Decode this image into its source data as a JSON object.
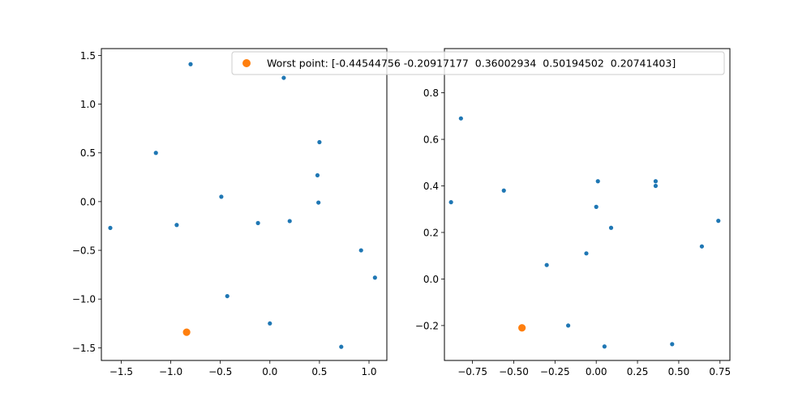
{
  "legend": {
    "label": "Worst point: [-0.44544756 -0.20917177  0.36002934  0.50194502  0.20741403]",
    "marker_color": "#ff7f0e"
  },
  "colors": {
    "points": "#1f77b4",
    "worst": "#ff7f0e",
    "axes": "#000000",
    "background": "#ffffff"
  },
  "chart_data": [
    {
      "type": "scatter",
      "xlim": [
        -1.7,
        1.18
      ],
      "ylim": [
        -1.63,
        1.57
      ],
      "xticks": [
        -1.5,
        -1.0,
        -0.5,
        0.0,
        0.5,
        1.0
      ],
      "xtick_labels": [
        "−1.5",
        "−1.0",
        "−0.5",
        "0.0",
        "0.5",
        "1.0"
      ],
      "yticks": [
        -1.5,
        -1.0,
        -0.5,
        0.0,
        0.5,
        1.0,
        1.5
      ],
      "ytick_labels": [
        "−1.5",
        "−1.0",
        "−0.5",
        "0.0",
        "0.5",
        "1.0",
        "1.5"
      ],
      "series": [
        {
          "points": [
            {
              "x": -0.8,
              "y": 1.41
            },
            {
              "x": 0.14,
              "y": 1.27
            },
            {
              "x": -1.15,
              "y": 0.5
            },
            {
              "x": 0.5,
              "y": 0.61
            },
            {
              "x": 0.48,
              "y": 0.27
            },
            {
              "x": -0.49,
              "y": 0.05
            },
            {
              "x": 0.49,
              "y": -0.01
            },
            {
              "x": -1.61,
              "y": -0.27
            },
            {
              "x": -0.94,
              "y": -0.24
            },
            {
              "x": -0.12,
              "y": -0.22
            },
            {
              "x": 0.2,
              "y": -0.2
            },
            {
              "x": 0.92,
              "y": -0.5
            },
            {
              "x": 1.06,
              "y": -0.78
            },
            {
              "x": -0.43,
              "y": -0.97
            },
            {
              "x": 0.0,
              "y": -1.25
            },
            {
              "x": 0.72,
              "y": -1.49
            }
          ]
        },
        {
          "name": "Worst point: [-0.44544756 -0.20917177  0.36002934  0.50194502  0.20741403]",
          "worst": true,
          "points": [
            {
              "x": -0.84,
              "y": -1.34
            }
          ]
        }
      ]
    },
    {
      "type": "scatter",
      "xlim": [
        -0.92,
        0.81
      ],
      "ylim": [
        -0.35,
        0.99
      ],
      "xticks": [
        -0.75,
        -0.5,
        -0.25,
        0.0,
        0.25,
        0.5,
        0.75
      ],
      "xtick_labels": [
        "−0.75",
        "−0.50",
        "−0.25",
        "0.00",
        "0.25",
        "0.50",
        "0.75"
      ],
      "yticks": [
        -0.2,
        0.0,
        0.2,
        0.4,
        0.6,
        0.8
      ],
      "ytick_labels": [
        "−0.2",
        "0.0",
        "0.2",
        "0.4",
        "0.6",
        "0.8"
      ],
      "series": [
        {
          "points": [
            {
              "x": -0.82,
              "y": 0.69
            },
            {
              "x": -0.88,
              "y": 0.33
            },
            {
              "x": -0.56,
              "y": 0.38
            },
            {
              "x": 0.01,
              "y": 0.42
            },
            {
              "x": 0.36,
              "y": 0.42
            },
            {
              "x": 0.36,
              "y": 0.4
            },
            {
              "x": 0.0,
              "y": 0.31
            },
            {
              "x": 0.09,
              "y": 0.22
            },
            {
              "x": 0.74,
              "y": 0.25
            },
            {
              "x": 0.64,
              "y": 0.14
            },
            {
              "x": -0.3,
              "y": 0.06
            },
            {
              "x": -0.06,
              "y": 0.11
            },
            {
              "x": -0.17,
              "y": -0.2
            },
            {
              "x": 0.05,
              "y": -0.29
            },
            {
              "x": 0.46,
              "y": -0.28
            }
          ]
        },
        {
          "name": "Worst point: [-0.44544756 -0.20917177  0.36002934  0.50194502  0.20741403]",
          "worst": true,
          "points": [
            {
              "x": -0.45,
              "y": -0.21
            }
          ]
        }
      ]
    }
  ]
}
